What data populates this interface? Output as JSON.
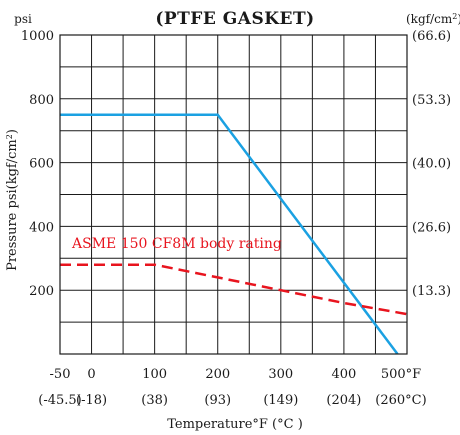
{
  "chart_data": {
    "type": "line",
    "title": "(PTFE  GASKET)",
    "xlabel": "Temperature°F (°C )",
    "ylabel": "Pressure  psi(kgf/cm²)",
    "y_unit_left": "psi",
    "y_unit_right": "(kgf/cm²)",
    "xlim": [
      -50,
      500
    ],
    "ylim": [
      0,
      1000
    ],
    "x_ticks": [
      -50,
      0,
      100,
      200,
      300,
      400,
      500
    ],
    "x_tick_labels": [
      "-50",
      "0",
      "100",
      "200",
      "300",
      "400",
      "500°F"
    ],
    "x_tick_labels_celsius": [
      "(-45.5)",
      "(-18)",
      "(38)",
      "(93)",
      "(149)",
      "(204)",
      "(260°C)"
    ],
    "y_ticks": [
      200,
      400,
      600,
      800,
      1000
    ],
    "y_tick_labels": [
      "200",
      "400",
      "600",
      "800",
      "1000"
    ],
    "y_right_ticks": [
      200,
      400,
      600,
      800,
      1000
    ],
    "y_right_tick_labels": [
      "(13.3)",
      "(26.6)",
      "(40.0)",
      "(53.3)",
      "(66.6)"
    ],
    "grid": true,
    "grid_x_step": 50,
    "grid_y_step": 100,
    "series": [
      {
        "color": "#1ba1e2",
        "style": "solid",
        "points": [
          [
            -50,
            750
          ],
          [
            200,
            750
          ],
          [
            485,
            0
          ]
        ]
      },
      {
        "name": "ASME 150 CF8M body rating",
        "color": "#e8141e",
        "style": "dashed",
        "points": [
          [
            -50,
            280
          ],
          [
            100,
            280
          ],
          [
            200,
            240
          ],
          [
            300,
            200
          ],
          [
            400,
            160
          ],
          [
            500,
            125
          ]
        ]
      }
    ]
  }
}
